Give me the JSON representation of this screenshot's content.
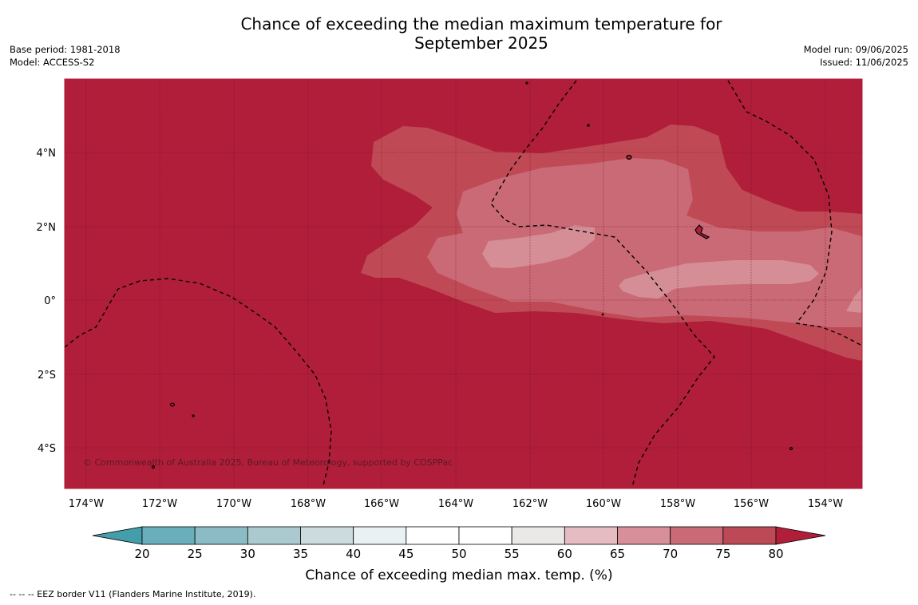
{
  "title_line1": "Chance of exceeding the median maximum temperature for",
  "title_line2": "September 2025",
  "meta_left": {
    "base_period": "Base period: 1981-2018",
    "model": "Model: ACCESS-S2"
  },
  "meta_right": {
    "model_run": "Model run: 09/06/2025",
    "issued": "Issued: 11/06/2025"
  },
  "copyright": "© Commonwealth of Australia 2025, Bureau of Meteorology, supported by COSPPac",
  "lat_labels": [
    "4°N",
    "2°N",
    "0°",
    "2°S",
    "4°S"
  ],
  "lon_labels": [
    "174°W",
    "172°W",
    "170°W",
    "168°W",
    "166°W",
    "164°W",
    "162°W",
    "160°W",
    "158°W",
    "156°W",
    "154°W"
  ],
  "colorbar": {
    "title": "Chance of exceeding median max. temp. (%)",
    "ticks": [
      "20",
      "25",
      "30",
      "35",
      "40",
      "45",
      "50",
      "55",
      "60",
      "65",
      "70",
      "75",
      "80"
    ],
    "colors": [
      "#449daa",
      "#6aaebb",
      "#8bbcc6",
      "#aacacf",
      "#cbdbde",
      "#eaf1f2",
      "#ffffff",
      "#ffffff",
      "#ebe8e8",
      "#e4bcc1",
      "#d7909a",
      "#c96a76",
      "#bc4a56",
      "#b01e3a"
    ]
  },
  "map": {
    "background_color": "#b01e3a",
    "colors": {
      "c70": "#bf4a56",
      "c65": "#c96a76",
      "c60": "#d58e96"
    }
  },
  "footnote": "--  --  -- EEZ border V11 (Flanders Marine Institute, 2019)."
}
